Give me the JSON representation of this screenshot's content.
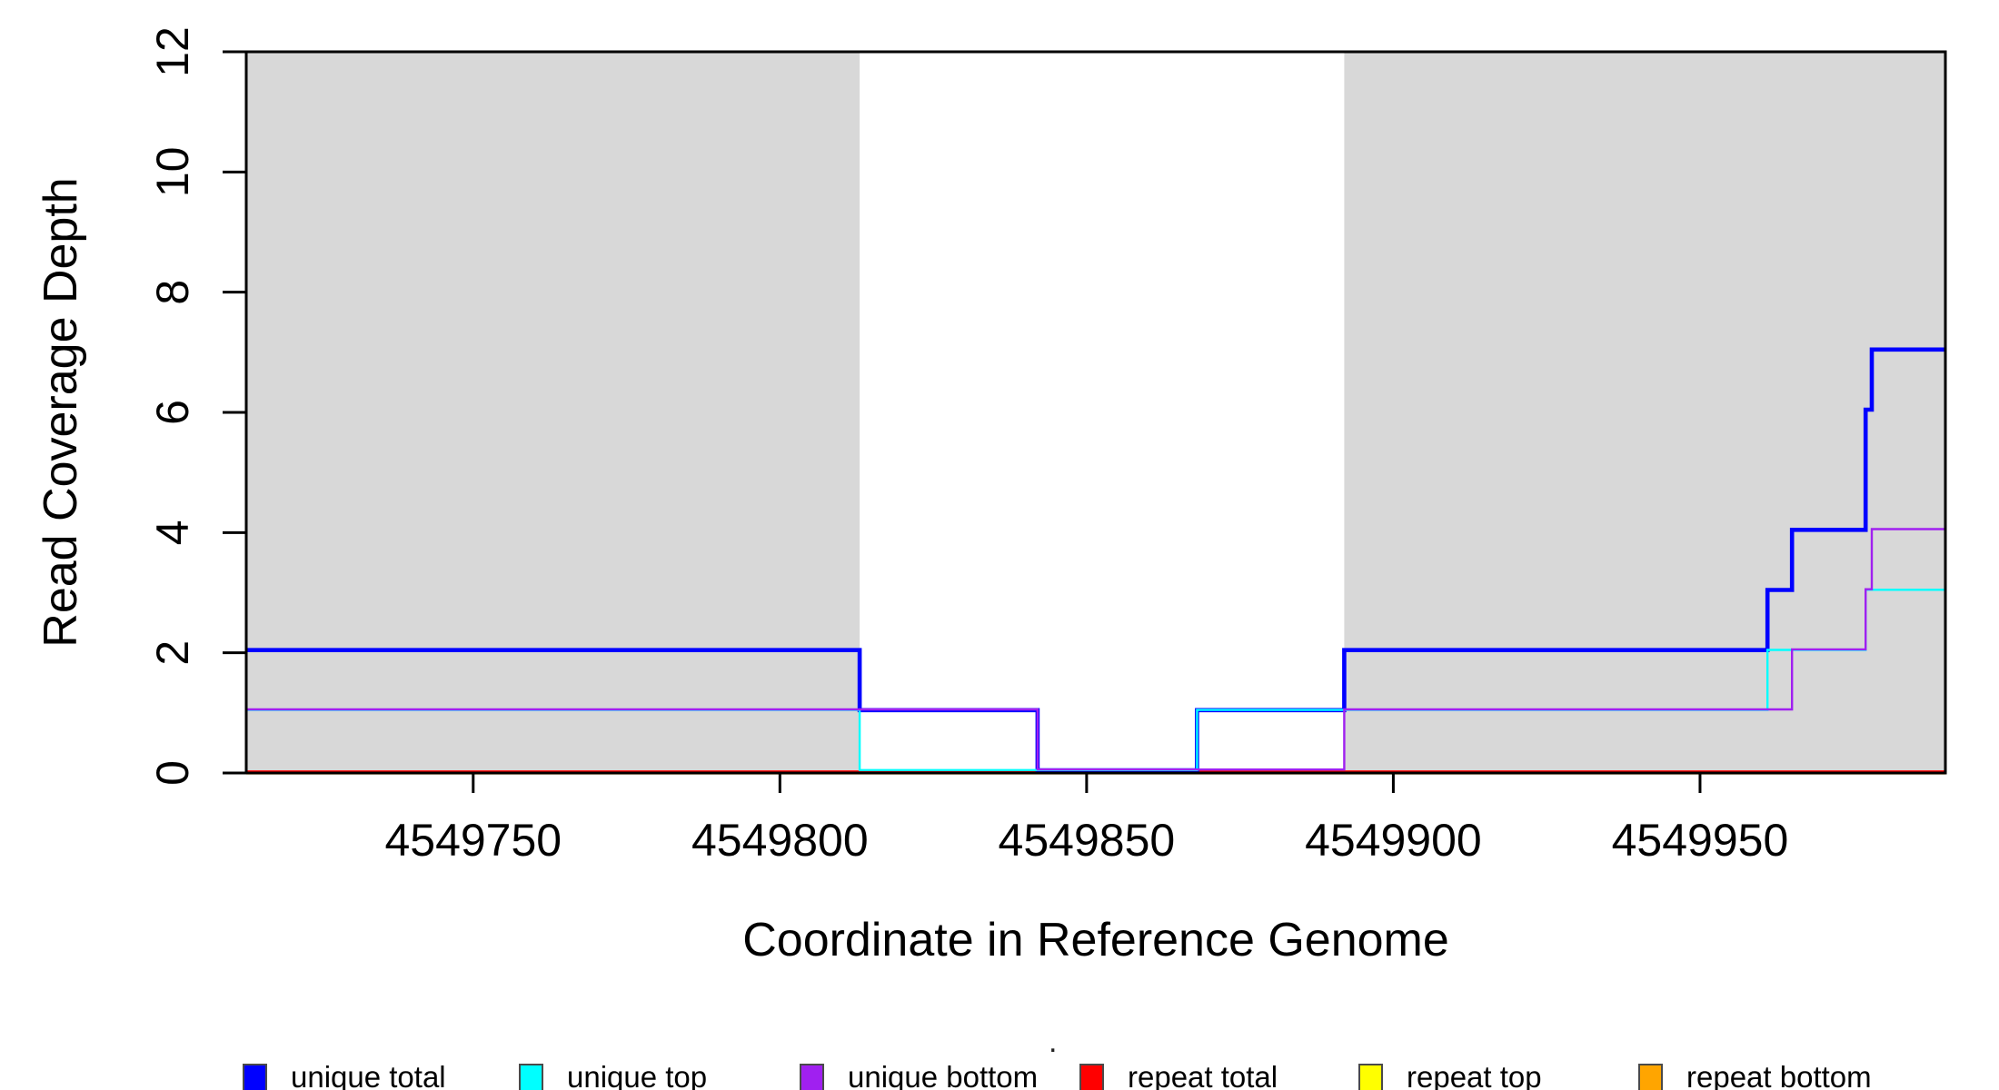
{
  "chart_data": {
    "type": "line",
    "subtype": "step-coverage-plot",
    "title": ".",
    "xlabel": "Coordinate in Reference Genome",
    "ylabel": "Read Coverage Depth",
    "xlim": [
      4549713,
      4549990
    ],
    "ylim": [
      0,
      12
    ],
    "x_ticks": [
      "4549750",
      "4549800",
      "4549850",
      "4549900",
      "4549950"
    ],
    "x_tick_values": [
      4549750,
      4549800,
      4549850,
      4549900,
      4549950
    ],
    "y_ticks": [
      "0",
      "2",
      "4",
      "6",
      "8",
      "10",
      "12"
    ],
    "y_tick_values": [
      0,
      2,
      4,
      6,
      8,
      10,
      12
    ],
    "grid": false,
    "shade_color": "#D8D8D8",
    "shaded_regions": [
      {
        "from": 4549713,
        "to": 4549813
      },
      {
        "from": 4549892,
        "to": 4549990
      }
    ],
    "series": [
      {
        "name": "unique total",
        "color": "#0000FF",
        "steps": [
          [
            4549713,
            2
          ],
          [
            4549813,
            1
          ],
          [
            4549842,
            0
          ],
          [
            4549868,
            1
          ],
          [
            4549892,
            2
          ],
          [
            4549961,
            3
          ],
          [
            4549965,
            4
          ],
          [
            4549977,
            6
          ],
          [
            4549978,
            7
          ],
          [
            4549990,
            7
          ]
        ]
      },
      {
        "name": "unique top",
        "color": "#00FFFF",
        "steps": [
          [
            4549713,
            1
          ],
          [
            4549813,
            0
          ],
          [
            4549868,
            1
          ],
          [
            4549961,
            2
          ],
          [
            4549977,
            3
          ],
          [
            4549990,
            3
          ]
        ]
      },
      {
        "name": "unique bottom",
        "color": "#A020F0",
        "steps": [
          [
            4549713,
            1
          ],
          [
            4549842,
            0
          ],
          [
            4549892,
            1
          ],
          [
            4549965,
            2
          ],
          [
            4549977,
            3
          ],
          [
            4549978,
            4
          ],
          [
            4549990,
            4
          ]
        ]
      },
      {
        "name": "repeat total",
        "color": "#FF0000",
        "steps": [
          [
            4549713,
            0
          ],
          [
            4549990,
            0
          ]
        ]
      },
      {
        "name": "repeat top",
        "color": "#FFFF00",
        "steps": [
          [
            4549713,
            0
          ],
          [
            4549990,
            0
          ]
        ]
      },
      {
        "name": "repeat bottom",
        "color": "#FFA500",
        "steps": [
          [
            4549713,
            0
          ],
          [
            4549990,
            0
          ]
        ]
      }
    ],
    "legend": [
      {
        "label": "unique total",
        "color": "#0000FF"
      },
      {
        "label": "unique top",
        "color": "#00FFFF"
      },
      {
        "label": "unique bottom",
        "color": "#A020F0"
      },
      {
        "label": "repeat total",
        "color": "#FF0000"
      },
      {
        "label": "repeat top",
        "color": "#FFFF00"
      },
      {
        "label": "repeat bottom",
        "color": "#FFA500"
      }
    ],
    "legend_position": "bottom"
  }
}
